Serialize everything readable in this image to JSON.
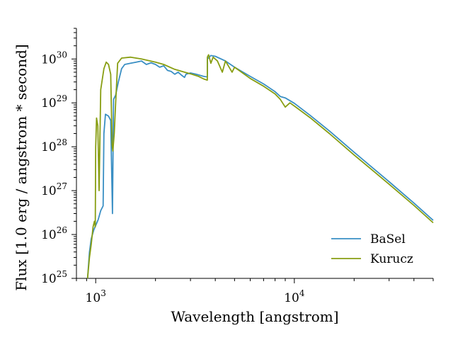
{
  "chart_data": {
    "type": "line",
    "xscale": "log",
    "yscale": "log",
    "xlim": [
      800,
      50000
    ],
    "ylim": [
      1e+25,
      5e+30
    ],
    "xlabel": "Wavelength [angstrom]",
    "ylabel": "Flux [1.0 erg / angstrom * second]",
    "x_ticks": [
      {
        "value": 1000,
        "base": "10",
        "exp": "3"
      },
      {
        "value": 10000,
        "base": "10",
        "exp": "4"
      }
    ],
    "y_ticks": [
      {
        "value": 1e+25,
        "base": "10",
        "exp": "25"
      },
      {
        "value": 1e+26,
        "base": "10",
        "exp": "26"
      },
      {
        "value": 1e+27,
        "base": "10",
        "exp": "27"
      },
      {
        "value": 1e+28,
        "base": "10",
        "exp": "28"
      },
      {
        "value": 1e+29,
        "base": "10",
        "exp": "29"
      },
      {
        "value": 1e+30,
        "base": "10",
        "exp": "30"
      }
    ],
    "legend_position": "lower-right",
    "grid": false,
    "series": [
      {
        "name": "BaSel",
        "color": "#3a8fc4",
        "points": [
          [
            910,
            1e+25
          ],
          [
            930,
            4e+25
          ],
          [
            950,
            8e+25
          ],
          [
            980,
            1.3e+26
          ],
          [
            1000,
            1.6e+26
          ],
          [
            1030,
            2.2e+26
          ],
          [
            1060,
            3.5e+26
          ],
          [
            1090,
            4.5e+26
          ],
          [
            1100,
            2e+28
          ],
          [
            1120,
            5.5e+28
          ],
          [
            1160,
            5e+28
          ],
          [
            1190,
            4e+28
          ],
          [
            1215,
            3e+26
          ],
          [
            1230,
            1.2e+29
          ],
          [
            1260,
            1.5e+29
          ],
          [
            1300,
            3e+29
          ],
          [
            1350,
            6e+29
          ],
          [
            1400,
            7.5e+29
          ],
          [
            1500,
            8e+29
          ],
          [
            1600,
            8.5e+29
          ],
          [
            1700,
            9e+29
          ],
          [
            1800,
            7.5e+29
          ],
          [
            1900,
            8.2e+29
          ],
          [
            2000,
            7.5e+29
          ],
          [
            2100,
            6.5e+29
          ],
          [
            2200,
            7e+29
          ],
          [
            2300,
            5.5e+29
          ],
          [
            2400,
            5.2e+29
          ],
          [
            2500,
            4.5e+29
          ],
          [
            2600,
            5e+29
          ],
          [
            2700,
            4.3e+29
          ],
          [
            2800,
            3.8e+29
          ],
          [
            2850,
            4.5e+29
          ],
          [
            3000,
            4.8e+29
          ],
          [
            3200,
            4.5e+29
          ],
          [
            3500,
            4e+29
          ],
          [
            3647,
            3.9e+29
          ],
          [
            3650,
            1e+30
          ],
          [
            3800,
            1.2e+30
          ],
          [
            4000,
            1.15e+30
          ],
          [
            4500,
            9e+29
          ],
          [
            5000,
            6.5e+29
          ],
          [
            6000,
            4e+29
          ],
          [
            7000,
            2.7e+29
          ],
          [
            8000,
            1.8e+29
          ],
          [
            8500,
            1.4e+29
          ],
          [
            9000,
            1.3e+29
          ],
          [
            10000,
            9.8e+28
          ],
          [
            12000,
            5.2e+28
          ],
          [
            15000,
            2.3e+28
          ],
          [
            20000,
            7.5e+27
          ],
          [
            25000,
            3.2e+27
          ],
          [
            30000,
            1.6e+27
          ],
          [
            40000,
            5.2e+26
          ],
          [
            50000,
            2.1e+26
          ]
        ]
      },
      {
        "name": "Kurucz",
        "color": "#889e12",
        "points": [
          [
            910,
            1e+25
          ],
          [
            930,
            3e+25
          ],
          [
            950,
            6e+25
          ],
          [
            970,
            1.5e+26
          ],
          [
            985,
            2e+26
          ],
          [
            995,
            1.5e+26
          ],
          [
            1000,
            1e+28
          ],
          [
            1010,
            4.5e+28
          ],
          [
            1025,
            3e+28
          ],
          [
            1040,
            1e+27
          ],
          [
            1060,
            2e+29
          ],
          [
            1100,
            6e+29
          ],
          [
            1130,
            8.5e+29
          ],
          [
            1160,
            7.5e+29
          ],
          [
            1190,
            4.5e+29
          ],
          [
            1210,
            1.1e+28
          ],
          [
            1220,
            8e+27
          ],
          [
            1240,
            2e+28
          ],
          [
            1260,
            1e+29
          ],
          [
            1290,
            8e+29
          ],
          [
            1350,
            1.05e+30
          ],
          [
            1500,
            1.1e+30
          ],
          [
            1700,
            1e+30
          ],
          [
            2000,
            8.5e+29
          ],
          [
            2200,
            7.5e+29
          ],
          [
            2500,
            5.8e+29
          ],
          [
            2800,
            5e+29
          ],
          [
            3000,
            4.6e+29
          ],
          [
            3300,
            4e+29
          ],
          [
            3500,
            3.5e+29
          ],
          [
            3647,
            3.3e+29
          ],
          [
            3650,
            1.1e+30
          ],
          [
            3700,
            1.25e+30
          ],
          [
            3800,
            8e+29
          ],
          [
            3900,
            1.1e+30
          ],
          [
            4100,
            9e+29
          ],
          [
            4340,
            5e+29
          ],
          [
            4500,
            9e+29
          ],
          [
            4861,
            5e+29
          ],
          [
            5000,
            6.5e+29
          ],
          [
            6000,
            3.6e+29
          ],
          [
            7000,
            2.4e+29
          ],
          [
            8000,
            1.6e+29
          ],
          [
            8500,
            1.2e+29
          ],
          [
            9000,
            8e+28
          ],
          [
            9500,
            1e+29
          ],
          [
            10000,
            8.5e+28
          ],
          [
            12000,
            4.6e+28
          ],
          [
            15000,
            2e+28
          ],
          [
            20000,
            6.5e+27
          ],
          [
            25000,
            2.8e+27
          ],
          [
            30000,
            1.4e+27
          ],
          [
            40000,
            4.6e+26
          ],
          [
            50000,
            1.85e+26
          ]
        ]
      }
    ]
  }
}
